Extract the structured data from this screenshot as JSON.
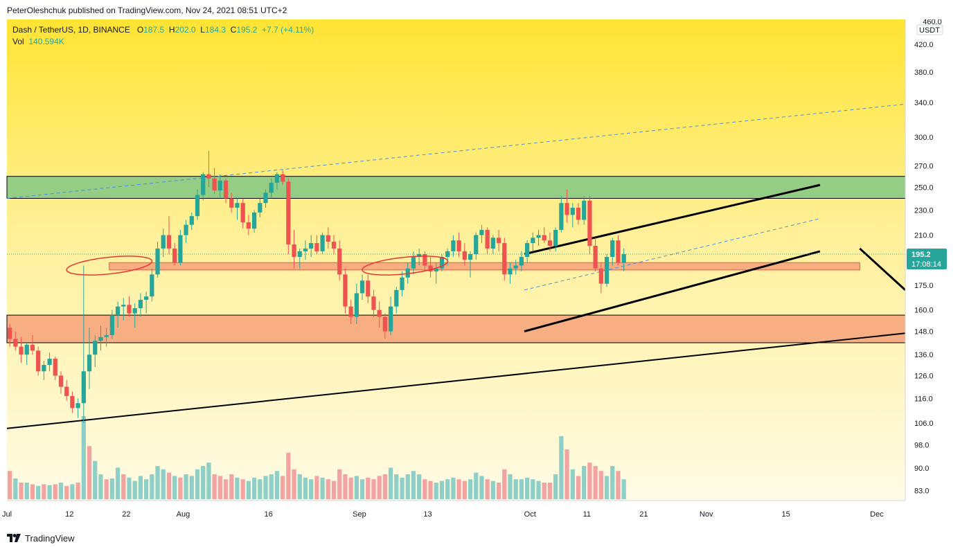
{
  "header": {
    "published_text": "PeterOleshchuk published on TradingView.com, Nov 24, 2021 08:51 UTC+2"
  },
  "legend": {
    "symbol": "Dash / TetherUS, 1D, BINANCE",
    "o_label": "O",
    "o_value": "187.5",
    "h_label": "H",
    "h_value": "202.0",
    "l_label": "L",
    "l_value": "184.3",
    "c_label": "C",
    "c_value": "195.2",
    "change": "+7.7 (+4.11%)",
    "vol_label": "Vol",
    "vol_value": "140.594K"
  },
  "price_axis": {
    "currency": "USDT",
    "top_label": "460.0",
    "current_price": "195.2",
    "countdown": "17:08:14"
  },
  "footer": {
    "brand": "TradingView"
  },
  "colors": {
    "up": "#26a69a",
    "down": "#ef5350",
    "vol_up": "#8ecfc7",
    "vol_down": "#f3a3a2",
    "green_zone": "#81c784",
    "orange_zone": "#f7a17a",
    "red_zone": "#f7a17a",
    "bg_top": "#ffe433",
    "bg_bottom": "#fffbe6",
    "dashed_line": "#4a90e2",
    "trend_line": "#000000",
    "ellipse": "#e53935"
  },
  "chart_data": {
    "type": "candlestick",
    "title": "Dash / TetherUS, 1D, BINANCE",
    "yscale": "log",
    "ylim": [
      80,
      460
    ],
    "y_ticks": [
      83,
      90,
      98,
      106,
      116,
      126,
      136,
      148,
      160,
      175,
      210,
      230,
      250,
      270,
      300,
      340,
      380,
      420
    ],
    "y_tick_labels": [
      "83.0",
      "90.0",
      "98.0",
      "106.0",
      "116.0",
      "126.0",
      "136.0",
      "148.0",
      "160.0",
      "175.0",
      "210.0",
      "230.0",
      "250.0",
      "270.0",
      "300.0",
      "340.0",
      "380.0",
      "420.0"
    ],
    "x_tick_labels": [
      "Jul",
      "12",
      "22",
      "Aug",
      "16",
      "Sep",
      "13",
      "Oct",
      "11",
      "21",
      "Nov",
      "15",
      "Dec"
    ],
    "x_tick_dates": [
      "2021-07-01",
      "2021-07-12",
      "2021-07-22",
      "2021-08-01",
      "2021-08-16",
      "2021-09-01",
      "2021-09-13",
      "2021-10-01",
      "2021-10-11",
      "2021-10-21",
      "2021-11-01",
      "2021-11-15",
      "2021-12-01"
    ],
    "x_range": [
      "2021-07-01",
      "2021-12-06"
    ],
    "zones": [
      {
        "name": "resistance-zone",
        "low": 240,
        "high": 260,
        "color": "#81c784"
      },
      {
        "name": "support-zone",
        "low": 142,
        "high": 157,
        "color": "#f7a17a"
      },
      {
        "name": "mid-zone",
        "low": 185,
        "high": 190,
        "start": "2021-07-19",
        "end": "2021-11-28",
        "color": "#f7a17a"
      }
    ],
    "lines": [
      {
        "name": "long-trend-line",
        "from": [
          "2021-07-01",
          104
        ],
        "to": [
          "2021-12-06",
          147
        ],
        "style": "solid"
      },
      {
        "name": "upper-dashed-line",
        "from": [
          "2021-07-01",
          240
        ],
        "to": [
          "2021-12-06",
          338
        ],
        "style": "dashed"
      },
      {
        "name": "channel-top",
        "from": [
          "2021-09-30",
          196
        ],
        "to": [
          "2021-11-21",
          252
        ],
        "style": "solid"
      },
      {
        "name": "channel-bottom",
        "from": [
          "2021-09-30",
          148
        ],
        "to": [
          "2021-11-21",
          198
        ],
        "style": "solid"
      },
      {
        "name": "channel-mid-dashed",
        "from": [
          "2021-09-30",
          172
        ],
        "to": [
          "2021-11-21",
          223
        ],
        "style": "dashed"
      },
      {
        "name": "projection-line",
        "from": [
          "2021-11-28",
          200
        ],
        "to": [
          "2021-12-06",
          172
        ],
        "style": "solid"
      }
    ],
    "ellipses": [
      {
        "name": "ellipse-july",
        "center": [
          "2021-07-19",
          188
        ]
      },
      {
        "name": "ellipse-september",
        "center": [
          "2021-09-09",
          188
        ]
      }
    ],
    "start_date": "2021-07-01",
    "candles": [
      [
        150,
        152,
        140,
        144
      ],
      [
        144,
        148,
        138,
        140
      ],
      [
        140,
        145,
        132,
        136
      ],
      [
        136,
        142,
        131,
        141
      ],
      [
        141,
        146,
        136,
        138
      ],
      [
        138,
        140,
        126,
        128
      ],
      [
        128,
        133,
        124,
        131
      ],
      [
        131,
        137,
        128,
        134
      ],
      [
        134,
        135,
        124,
        126
      ],
      [
        126,
        128,
        118,
        121
      ],
      [
        121,
        124,
        115,
        117
      ],
      [
        117,
        119,
        110,
        112
      ],
      [
        112,
        116,
        108,
        114
      ],
      [
        114,
        188,
        106,
        128
      ],
      [
        128,
        150,
        120,
        136
      ],
      [
        136,
        146,
        130,
        143
      ],
      [
        143,
        151,
        138,
        145
      ],
      [
        145,
        150,
        140,
        146
      ],
      [
        146,
        160,
        144,
        157
      ],
      [
        157,
        165,
        150,
        162
      ],
      [
        162,
        167,
        154,
        163
      ],
      [
        163,
        168,
        156,
        158
      ],
      [
        158,
        164,
        150,
        161
      ],
      [
        161,
        170,
        156,
        166
      ],
      [
        166,
        171,
        158,
        168
      ],
      [
        168,
        186,
        165,
        182
      ],
      [
        182,
        205,
        180,
        200
      ],
      [
        200,
        215,
        194,
        210
      ],
      [
        210,
        225,
        196,
        200
      ],
      [
        200,
        204,
        188,
        190
      ],
      [
        190,
        214,
        188,
        210
      ],
      [
        210,
        222,
        204,
        218
      ],
      [
        218,
        228,
        214,
        225
      ],
      [
        225,
        248,
        222,
        243
      ],
      [
        243,
        264,
        238,
        262
      ],
      [
        262,
        285,
        250,
        258
      ],
      [
        258,
        268,
        244,
        247
      ],
      [
        247,
        262,
        240,
        256
      ],
      [
        256,
        258,
        236,
        240
      ],
      [
        240,
        245,
        228,
        232
      ],
      [
        232,
        240,
        222,
        236
      ],
      [
        236,
        240,
        215,
        220
      ],
      [
        220,
        226,
        210,
        215
      ],
      [
        215,
        230,
        212,
        228
      ],
      [
        228,
        240,
        224,
        236
      ],
      [
        236,
        248,
        232,
        245
      ],
      [
        245,
        258,
        240,
        254
      ],
      [
        254,
        264,
        248,
        262
      ],
      [
        262,
        266,
        252,
        255
      ],
      [
        255,
        258,
        196,
        203
      ],
      [
        203,
        214,
        186,
        194
      ],
      [
        194,
        200,
        186,
        198
      ],
      [
        198,
        206,
        192,
        200
      ],
      [
        200,
        210,
        194,
        204
      ],
      [
        204,
        210,
        196,
        198
      ],
      [
        198,
        212,
        196,
        210
      ],
      [
        210,
        216,
        200,
        205
      ],
      [
        205,
        210,
        196,
        200
      ],
      [
        200,
        206,
        178,
        182
      ],
      [
        182,
        186,
        158,
        162
      ],
      [
        162,
        166,
        152,
        156
      ],
      [
        156,
        176,
        152,
        170
      ],
      [
        170,
        182,
        166,
        178
      ],
      [
        178,
        182,
        164,
        168
      ],
      [
        168,
        172,
        156,
        160
      ],
      [
        160,
        165,
        150,
        156
      ],
      [
        156,
        158,
        144,
        148
      ],
      [
        148,
        168,
        146,
        162
      ],
      [
        162,
        174,
        158,
        172
      ],
      [
        172,
        184,
        168,
        180
      ],
      [
        180,
        190,
        176,
        186
      ],
      [
        186,
        198,
        182,
        194
      ],
      [
        194,
        200,
        188,
        196
      ],
      [
        196,
        198,
        184,
        188
      ],
      [
        188,
        194,
        180,
        184
      ],
      [
        184,
        190,
        176,
        186
      ],
      [
        186,
        196,
        184,
        194
      ],
      [
        194,
        200,
        188,
        198
      ],
      [
        198,
        210,
        194,
        206
      ],
      [
        206,
        212,
        194,
        198
      ],
      [
        198,
        204,
        188,
        192
      ],
      [
        192,
        198,
        180,
        196
      ],
      [
        196,
        212,
        192,
        210
      ],
      [
        210,
        218,
        204,
        214
      ],
      [
        214,
        216,
        196,
        200
      ],
      [
        200,
        210,
        196,
        208
      ],
      [
        208,
        214,
        198,
        204
      ],
      [
        204,
        208,
        178,
        182
      ],
      [
        182,
        190,
        176,
        186
      ],
      [
        186,
        192,
        182,
        188
      ],
      [
        188,
        198,
        184,
        194
      ],
      [
        194,
        206,
        190,
        204
      ],
      [
        204,
        212,
        198,
        208
      ],
      [
        208,
        214,
        202,
        210
      ],
      [
        210,
        216,
        204,
        206
      ],
      [
        206,
        212,
        198,
        202
      ],
      [
        202,
        216,
        198,
        214
      ],
      [
        214,
        242,
        212,
        236
      ],
      [
        236,
        248,
        220,
        226
      ],
      [
        226,
        236,
        216,
        232
      ],
      [
        232,
        236,
        218,
        222
      ],
      [
        222,
        242,
        218,
        238
      ],
      [
        238,
        242,
        196,
        202
      ],
      [
        202,
        208,
        184,
        186
      ],
      [
        186,
        190,
        170,
        176
      ],
      [
        176,
        196,
        174,
        194
      ],
      [
        194,
        208,
        188,
        206
      ],
      [
        206,
        210,
        188,
        190
      ],
      [
        190,
        200,
        184,
        196
      ]
    ],
    "volumes": [
      [
        0.34,
        "d"
      ],
      [
        0.25,
        "u"
      ],
      [
        0.2,
        "d"
      ],
      [
        0.2,
        "u"
      ],
      [
        0.18,
        "d"
      ],
      [
        0.16,
        "u"
      ],
      [
        0.18,
        "d"
      ],
      [
        0.17,
        "u"
      ],
      [
        0.18,
        "d"
      ],
      [
        0.2,
        "u"
      ],
      [
        0.16,
        "d"
      ],
      [
        0.18,
        "u"
      ],
      [
        0.2,
        "d"
      ],
      [
        1.0,
        "u"
      ],
      [
        0.64,
        "d"
      ],
      [
        0.46,
        "u"
      ],
      [
        0.3,
        "u"
      ],
      [
        0.24,
        "d"
      ],
      [
        0.25,
        "u"
      ],
      [
        0.38,
        "u"
      ],
      [
        0.3,
        "d"
      ],
      [
        0.26,
        "u"
      ],
      [
        0.22,
        "u"
      ],
      [
        0.28,
        "u"
      ],
      [
        0.24,
        "u"
      ],
      [
        0.3,
        "u"
      ],
      [
        0.4,
        "u"
      ],
      [
        0.36,
        "u"
      ],
      [
        0.32,
        "d"
      ],
      [
        0.28,
        "u"
      ],
      [
        0.26,
        "d"
      ],
      [
        0.3,
        "u"
      ],
      [
        0.28,
        "u"
      ],
      [
        0.36,
        "u"
      ],
      [
        0.4,
        "u"
      ],
      [
        0.44,
        "u"
      ],
      [
        0.3,
        "d"
      ],
      [
        0.28,
        "d"
      ],
      [
        0.24,
        "d"
      ],
      [
        0.3,
        "d"
      ],
      [
        0.26,
        "u"
      ],
      [
        0.24,
        "d"
      ],
      [
        0.22,
        "u"
      ],
      [
        0.26,
        "u"
      ],
      [
        0.24,
        "u"
      ],
      [
        0.28,
        "u"
      ],
      [
        0.3,
        "u"
      ],
      [
        0.34,
        "u"
      ],
      [
        0.28,
        "d"
      ],
      [
        0.56,
        "d"
      ],
      [
        0.36,
        "d"
      ],
      [
        0.3,
        "u"
      ],
      [
        0.26,
        "u"
      ],
      [
        0.24,
        "u"
      ],
      [
        0.28,
        "d"
      ],
      [
        0.26,
        "u"
      ],
      [
        0.24,
        "d"
      ],
      [
        0.22,
        "d"
      ],
      [
        0.36,
        "d"
      ],
      [
        0.3,
        "d"
      ],
      [
        0.26,
        "d"
      ],
      [
        0.28,
        "u"
      ],
      [
        0.24,
        "u"
      ],
      [
        0.26,
        "d"
      ],
      [
        0.24,
        "d"
      ],
      [
        0.28,
        "d"
      ],
      [
        0.3,
        "d"
      ],
      [
        0.38,
        "u"
      ],
      [
        0.3,
        "u"
      ],
      [
        0.26,
        "u"
      ],
      [
        0.3,
        "u"
      ],
      [
        0.34,
        "u"
      ],
      [
        0.3,
        "u"
      ],
      [
        0.24,
        "d"
      ],
      [
        0.22,
        "d"
      ],
      [
        0.2,
        "u"
      ],
      [
        0.22,
        "u"
      ],
      [
        0.24,
        "u"
      ],
      [
        0.26,
        "u"
      ],
      [
        0.24,
        "d"
      ],
      [
        0.22,
        "d"
      ],
      [
        0.24,
        "u"
      ],
      [
        0.32,
        "u"
      ],
      [
        0.28,
        "u"
      ],
      [
        0.24,
        "d"
      ],
      [
        0.22,
        "u"
      ],
      [
        0.2,
        "d"
      ],
      [
        0.36,
        "d"
      ],
      [
        0.3,
        "u"
      ],
      [
        0.24,
        "u"
      ],
      [
        0.24,
        "u"
      ],
      [
        0.26,
        "u"
      ],
      [
        0.24,
        "u"
      ],
      [
        0.22,
        "u"
      ],
      [
        0.2,
        "d"
      ],
      [
        0.2,
        "d"
      ],
      [
        0.3,
        "u"
      ],
      [
        0.76,
        "u"
      ],
      [
        0.6,
        "d"
      ],
      [
        0.36,
        "u"
      ],
      [
        0.28,
        "d"
      ],
      [
        0.4,
        "u"
      ],
      [
        0.44,
        "d"
      ],
      [
        0.4,
        "d"
      ],
      [
        0.34,
        "d"
      ],
      [
        0.28,
        "u"
      ],
      [
        0.4,
        "u"
      ],
      [
        0.34,
        "d"
      ],
      [
        0.24,
        "u"
      ]
    ]
  }
}
